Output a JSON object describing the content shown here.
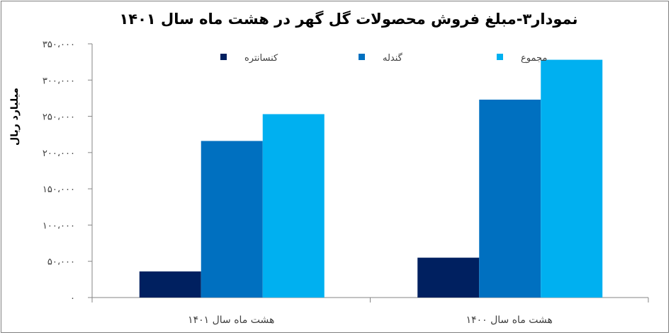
{
  "chart_data": {
    "type": "bar",
    "title": "نمودار۳-مبلغ فروش محصولات گل گهر در هشت ماه سال ۱۴۰۱",
    "ylabel": "میلیارد ریال",
    "xlabel": "",
    "categories": [
      "هشت ماه سال ۱۴۰۱",
      "هشت ماه سال ۱۴۰۰"
    ],
    "series": [
      {
        "name": "کنسانتره",
        "color": "#002060",
        "values": [
          36000,
          55000
        ]
      },
      {
        "name": "گندله",
        "color": "#0070C0",
        "values": [
          216000,
          273000
        ]
      },
      {
        "name": "مجموع",
        "color": "#00B0F0",
        "values": [
          253000,
          328000
        ]
      }
    ],
    "ylim": [
      0,
      350000
    ],
    "yticks": [
      0,
      50000,
      100000,
      150000,
      200000,
      250000,
      300000,
      350000
    ],
    "ytick_labels": [
      "۰",
      "۵۰،۰۰۰",
      "۱۰۰،۰۰۰",
      "۱۵۰،۰۰۰",
      "۲۰۰،۰۰۰",
      "۲۵۰،۰۰۰",
      "۳۰۰،۰۰۰",
      "۳۵۰،۰۰۰"
    ],
    "grid": false,
    "legend_position": "top"
  }
}
